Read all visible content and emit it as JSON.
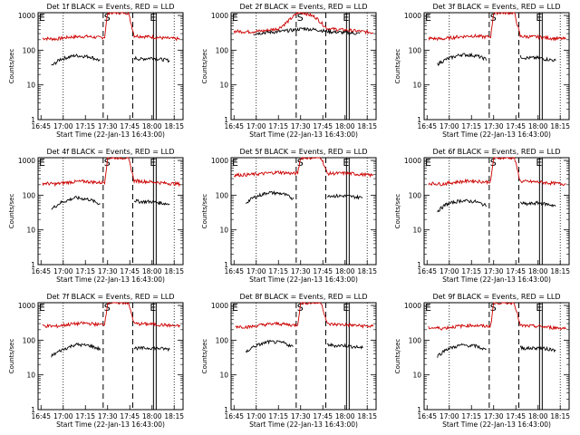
{
  "chart_data": [
    {
      "type": "line",
      "title": "Det 1f BLACK = Events, RED = LLD",
      "xlabel": "Start Time (22-Jan-13 16:43:00)",
      "ylabel": "Counts/sec",
      "x_ticks": [
        "16:45",
        "17:00",
        "17:15",
        "17:30",
        "17:45",
        "18:00",
        "18:15"
      ],
      "y_ticks": [
        "1",
        "10",
        "100",
        "1000"
      ],
      "ylim": [
        1,
        1200
      ],
      "log_y": true,
      "markers": [
        {
          "label": "E",
          "pos": "left"
        },
        {
          "label": "S",
          "pos": "17:30"
        },
        {
          "label": "E",
          "pos": "18:01"
        }
      ],
      "series": [
        {
          "name": "RED = LLD",
          "color": "#cc0000",
          "x": [
            "16:46",
            "16:55",
            "17:05",
            "17:15",
            "17:25",
            "17:28",
            "17:30",
            "17:44",
            "17:48",
            "18:00",
            "18:10",
            "18:19"
          ],
          "y": [
            220,
            210,
            240,
            250,
            230,
            240,
            1200,
            1200,
            260,
            240,
            220,
            210
          ]
        },
        {
          "name": "BLACK = Events",
          "color": "#000000",
          "x": [
            "16:52",
            "16:58",
            "17:08",
            "17:18",
            "17:25",
            "17:48",
            "17:52",
            "18:00",
            "18:12"
          ],
          "y": [
            35,
            55,
            70,
            65,
            50,
            60,
            55,
            60,
            50
          ]
        }
      ]
    },
    {
      "type": "line",
      "title": "Det 2f BLACK = Events, RED = LLD",
      "xlabel": "Start Time (22-Jan-13 16:43:00)",
      "ylabel": "Counts/sec",
      "x_ticks": [
        "16:45",
        "17:00",
        "17:15",
        "17:30",
        "17:45",
        "18:00",
        "18:15"
      ],
      "y_ticks": [
        "1",
        "10",
        "100",
        "1000"
      ],
      "ylim": [
        1,
        1200
      ],
      "log_y": true,
      "markers": [
        {
          "label": "E",
          "pos": "left"
        },
        {
          "label": "S",
          "pos": "17:30"
        },
        {
          "label": "E",
          "pos": "18:01"
        }
      ],
      "series": [
        {
          "name": "RED = LLD",
          "color": "#cc0000",
          "x": [
            "16:45",
            "16:55",
            "17:05",
            "17:15",
            "17:20",
            "17:28",
            "17:32",
            "17:40",
            "17:48",
            "18:00",
            "18:10",
            "18:19"
          ],
          "y": [
            350,
            340,
            360,
            420,
            600,
            1200,
            1200,
            900,
            420,
            380,
            350,
            320
          ]
        },
        {
          "name": "BLACK = Events",
          "color": "#000000",
          "x": [
            "16:58",
            "17:05",
            "17:15",
            "17:25",
            "17:32",
            "17:42",
            "17:50",
            "18:00",
            "18:10"
          ],
          "y": [
            300,
            320,
            340,
            380,
            420,
            380,
            340,
            320,
            300
          ]
        }
      ]
    },
    {
      "type": "line",
      "title": "Det 3f BLACK = Events, RED = LLD",
      "xlabel": "Start Time (22-Jan-13 16:43:00)",
      "ylabel": "Counts/sec",
      "x_ticks": [
        "16:45",
        "17:00",
        "17:15",
        "17:30",
        "17:45",
        "18:00",
        "18:15"
      ],
      "y_ticks": [
        "1",
        "10",
        "100",
        "1000"
      ],
      "ylim": [
        1,
        1200
      ],
      "log_y": true,
      "markers": [
        {
          "label": "E",
          "pos": "left"
        },
        {
          "label": "S",
          "pos": "17:30"
        },
        {
          "label": "E",
          "pos": "18:01"
        }
      ],
      "series": [
        {
          "name": "RED = LLD",
          "color": "#cc0000",
          "x": [
            "16:46",
            "16:55",
            "17:05",
            "17:15",
            "17:25",
            "17:28",
            "17:30",
            "17:44",
            "17:48",
            "18:00",
            "18:10",
            "18:19"
          ],
          "y": [
            220,
            210,
            240,
            260,
            240,
            250,
            1200,
            1200,
            250,
            240,
            220,
            210
          ]
        },
        {
          "name": "BLACK = Events",
          "color": "#000000",
          "x": [
            "16:52",
            "16:58",
            "17:08",
            "17:18",
            "17:25",
            "17:48",
            "17:52",
            "18:00",
            "18:12"
          ],
          "y": [
            40,
            55,
            75,
            70,
            55,
            65,
            60,
            60,
            50
          ]
        }
      ]
    },
    {
      "type": "line",
      "title": "Det 4f BLACK = Events, RED = LLD",
      "xlabel": "Start Time (22-Jan-13 16:43:00)",
      "ylabel": "Counts/sec",
      "x_ticks": [
        "16:45",
        "17:00",
        "17:15",
        "17:30",
        "17:45",
        "18:00",
        "18:15"
      ],
      "y_ticks": [
        "1",
        "10",
        "100",
        "1000"
      ],
      "ylim": [
        1,
        1200
      ],
      "log_y": true,
      "markers": [
        {
          "label": "E",
          "pos": "left"
        },
        {
          "label": "S",
          "pos": "17:30"
        },
        {
          "label": "E",
          "pos": "18:01"
        }
      ],
      "series": [
        {
          "name": "RED = LLD",
          "color": "#cc0000",
          "x": [
            "16:46",
            "16:55",
            "17:05",
            "17:15",
            "17:25",
            "17:28",
            "17:30",
            "17:44",
            "17:48",
            "18:00",
            "18:10",
            "18:19"
          ],
          "y": [
            220,
            210,
            240,
            250,
            230,
            240,
            1200,
            1200,
            260,
            240,
            220,
            210
          ]
        },
        {
          "name": "BLACK = Events",
          "color": "#000000",
          "x": [
            "16:52",
            "16:58",
            "17:08",
            "17:18",
            "17:25",
            "17:48",
            "17:52",
            "18:00",
            "18:12"
          ],
          "y": [
            40,
            60,
            85,
            75,
            55,
            70,
            65,
            65,
            55
          ]
        }
      ]
    },
    {
      "type": "line",
      "title": "Det 5f BLACK = Events, RED = LLD",
      "xlabel": "Start Time (22-Jan-13 16:43:00)",
      "ylabel": "Counts/sec",
      "x_ticks": [
        "16:45",
        "17:00",
        "17:15",
        "17:30",
        "17:45",
        "18:00",
        "18:15"
      ],
      "y_ticks": [
        "1",
        "10",
        "100",
        "1000"
      ],
      "ylim": [
        1,
        1200
      ],
      "log_y": true,
      "markers": [
        {
          "label": "E",
          "pos": "left"
        },
        {
          "label": "S",
          "pos": "17:30"
        },
        {
          "label": "E",
          "pos": "18:01"
        }
      ],
      "series": [
        {
          "name": "RED = LLD",
          "color": "#cc0000",
          "x": [
            "16:45",
            "16:55",
            "17:05",
            "17:15",
            "17:25",
            "17:28",
            "17:30",
            "17:44",
            "17:48",
            "18:00",
            "18:10",
            "18:19"
          ],
          "y": [
            380,
            390,
            420,
            460,
            420,
            430,
            1200,
            1200,
            420,
            430,
            400,
            370
          ]
        },
        {
          "name": "BLACK = Events",
          "color": "#000000",
          "x": [
            "16:53",
            "16:58",
            "17:08",
            "17:18",
            "17:25",
            "17:48",
            "17:52",
            "18:00",
            "18:12"
          ],
          "y": [
            60,
            85,
            120,
            110,
            80,
            100,
            95,
            95,
            85
          ]
        }
      ]
    },
    {
      "type": "line",
      "title": "Det 6f BLACK = Events, RED = LLD",
      "xlabel": "Start Time (22-Jan-13 16:43:00)",
      "ylabel": "Counts/sec",
      "x_ticks": [
        "16:45",
        "17:00",
        "17:15",
        "17:30",
        "17:45",
        "18:00",
        "18:15"
      ],
      "y_ticks": [
        "1",
        "10",
        "100",
        "1000"
      ],
      "ylim": [
        1,
        1200
      ],
      "log_y": true,
      "markers": [
        {
          "label": "E",
          "pos": "left"
        },
        {
          "label": "S",
          "pos": "17:30"
        },
        {
          "label": "E",
          "pos": "18:01"
        }
      ],
      "series": [
        {
          "name": "RED = LLD",
          "color": "#cc0000",
          "x": [
            "16:46",
            "16:55",
            "17:05",
            "17:15",
            "17:25",
            "17:28",
            "17:30",
            "17:44",
            "17:48",
            "18:00",
            "18:10",
            "18:19"
          ],
          "y": [
            220,
            210,
            240,
            260,
            240,
            250,
            1200,
            1200,
            250,
            240,
            220,
            210
          ]
        },
        {
          "name": "BLACK = Events",
          "color": "#000000",
          "x": [
            "16:52",
            "16:58",
            "17:08",
            "17:18",
            "17:25",
            "17:48",
            "17:52",
            "18:00",
            "18:12"
          ],
          "y": [
            35,
            55,
            70,
            65,
            50,
            60,
            55,
            60,
            50
          ]
        }
      ]
    },
    {
      "type": "line",
      "title": "Det 7f BLACK = Events, RED = LLD",
      "xlabel": "Start Time (22-Jan-13 16:43:00)",
      "ylabel": "Counts/sec",
      "x_ticks": [
        "16:45",
        "17:00",
        "17:15",
        "17:30",
        "17:45",
        "18:00",
        "18:15"
      ],
      "y_ticks": [
        "1",
        "10",
        "100",
        "1000"
      ],
      "ylim": [
        1,
        1200
      ],
      "log_y": true,
      "markers": [
        {
          "label": "E",
          "pos": "left"
        },
        {
          "label": "S",
          "pos": "17:30"
        },
        {
          "label": "E",
          "pos": "18:01"
        }
      ],
      "series": [
        {
          "name": "RED = LLD",
          "color": "#cc0000",
          "x": [
            "16:46",
            "16:55",
            "17:05",
            "17:15",
            "17:25",
            "17:28",
            "17:30",
            "17:44",
            "17:48",
            "18:00",
            "18:10",
            "18:19"
          ],
          "y": [
            260,
            250,
            290,
            310,
            280,
            290,
            1200,
            1200,
            300,
            290,
            270,
            250
          ]
        },
        {
          "name": "BLACK = Events",
          "color": "#000000",
          "x": [
            "16:52",
            "16:58",
            "17:08",
            "17:18",
            "17:25",
            "17:48",
            "17:52",
            "18:00",
            "18:12"
          ],
          "y": [
            35,
            50,
            75,
            70,
            55,
            60,
            58,
            60,
            55
          ]
        }
      ]
    },
    {
      "type": "line",
      "title": "Det 8f BLACK = Events, RED = LLD",
      "xlabel": "Start Time (22-Jan-13 16:43:00)",
      "ylabel": "Counts/sec",
      "x_ticks": [
        "16:45",
        "17:00",
        "17:15",
        "17:30",
        "17:45",
        "18:00",
        "18:15"
      ],
      "y_ticks": [
        "1",
        "10",
        "100",
        "1000"
      ],
      "ylim": [
        1,
        1200
      ],
      "log_y": true,
      "markers": [
        {
          "label": "E",
          "pos": "left"
        },
        {
          "label": "S",
          "pos": "17:30"
        },
        {
          "label": "E",
          "pos": "18:01"
        }
      ],
      "series": [
        {
          "name": "RED = LLD",
          "color": "#cc0000",
          "x": [
            "16:46",
            "16:55",
            "17:05",
            "17:15",
            "17:25",
            "17:28",
            "17:30",
            "17:44",
            "17:48",
            "18:00",
            "18:10",
            "18:19"
          ],
          "y": [
            250,
            240,
            280,
            300,
            270,
            280,
            1200,
            1200,
            290,
            280,
            260,
            250
          ]
        },
        {
          "name": "BLACK = Events",
          "color": "#000000",
          "x": [
            "16:53",
            "16:58",
            "17:08",
            "17:18",
            "17:25",
            "17:48",
            "17:52",
            "18:00",
            "18:12"
          ],
          "y": [
            45,
            65,
            90,
            85,
            65,
            75,
            70,
            70,
            60
          ]
        }
      ]
    },
    {
      "type": "line",
      "title": "Det 9f BLACK = Events, RED = LLD",
      "xlabel": "Start Time (22-Jan-13 16:43:00)",
      "ylabel": "Counts/sec",
      "x_ticks": [
        "16:45",
        "17:00",
        "17:15",
        "17:30",
        "17:45",
        "18:00",
        "18:15"
      ],
      "y_ticks": [
        "1",
        "10",
        "100",
        "1000"
      ],
      "ylim": [
        1,
        1200
      ],
      "log_y": true,
      "markers": [
        {
          "label": "E",
          "pos": "left"
        },
        {
          "label": "S",
          "pos": "17:30"
        },
        {
          "label": "E",
          "pos": "18:01"
        }
      ],
      "series": [
        {
          "name": "RED = LLD",
          "color": "#cc0000",
          "x": [
            "16:46",
            "16:55",
            "17:05",
            "17:15",
            "17:25",
            "17:28",
            "17:30",
            "17:44",
            "17:48",
            "18:00",
            "18:10",
            "18:19"
          ],
          "y": [
            230,
            220,
            250,
            270,
            250,
            260,
            1200,
            1200,
            260,
            250,
            230,
            220
          ]
        },
        {
          "name": "BLACK = Events",
          "color": "#000000",
          "x": [
            "16:52",
            "16:58",
            "17:08",
            "17:18",
            "17:25",
            "17:48",
            "17:52",
            "18:00",
            "18:12"
          ],
          "y": [
            35,
            55,
            72,
            68,
            52,
            62,
            58,
            60,
            52
          ]
        }
      ]
    }
  ]
}
